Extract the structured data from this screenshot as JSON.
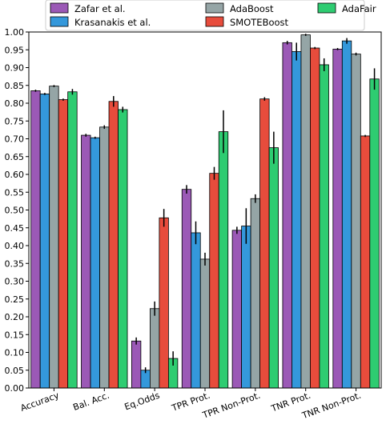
{
  "chart_data": {
    "type": "bar",
    "title": "",
    "xlabel": "",
    "ylabel": "",
    "ylim": [
      0,
      1.0
    ],
    "y_ticks": [
      "0.00",
      "0.05",
      "0.10",
      "0.15",
      "0.20",
      "0.25",
      "0.30",
      "0.35",
      "0.40",
      "0.45",
      "0.50",
      "0.55",
      "0.60",
      "0.65",
      "0.70",
      "0.75",
      "0.80",
      "0.85",
      "0.90",
      "0.95",
      "1.00"
    ],
    "categories": [
      "Accuracy",
      "Bal. Acc.",
      "Eq.Odds",
      "TPR Prot.",
      "TPR Non-Prot.",
      "TNR Prot.",
      "TNR Non-Prot."
    ],
    "grid": false,
    "legend_position": "top",
    "series": [
      {
        "name": "Zafar et al.",
        "color": "#9b59b6",
        "values": [
          0.835,
          0.71,
          0.132,
          0.558,
          0.443,
          0.97,
          0.952
        ],
        "errors": [
          0.003,
          0.004,
          0.01,
          0.012,
          0.01,
          0.005,
          0.003
        ]
      },
      {
        "name": "Krasanakis et al.",
        "color": "#3498db",
        "values": [
          0.826,
          0.703,
          0.05,
          0.436,
          0.455,
          0.945,
          0.975
        ],
        "errors": [
          0.003,
          0.003,
          0.008,
          0.032,
          0.05,
          0.025,
          0.008
        ]
      },
      {
        "name": "AdaBoost",
        "color": "#95a5a6",
        "values": [
          0.848,
          0.733,
          0.223,
          0.362,
          0.532,
          0.992,
          0.938
        ],
        "errors": [
          0.003,
          0.005,
          0.02,
          0.018,
          0.012,
          0.003,
          0.004
        ]
      },
      {
        "name": "SMOTEBoost",
        "color": "#e74c3c",
        "values": [
          0.81,
          0.805,
          0.478,
          0.603,
          0.812,
          0.955,
          0.708
        ],
        "errors": [
          0.003,
          0.015,
          0.025,
          0.018,
          0.005,
          0.003,
          0.003
        ]
      },
      {
        "name": "AdaFair",
        "color": "#2ecc71",
        "values": [
          0.832,
          0.782,
          0.083,
          0.72,
          0.675,
          0.908,
          0.868
        ],
        "errors": [
          0.008,
          0.008,
          0.02,
          0.06,
          0.045,
          0.018,
          0.03
        ]
      }
    ]
  }
}
